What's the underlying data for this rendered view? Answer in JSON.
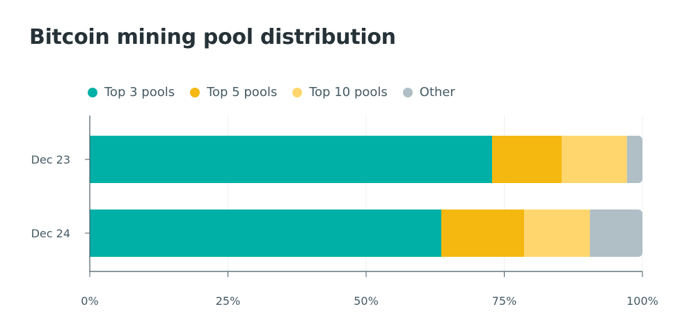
{
  "chart_data": {
    "type": "bar",
    "orientation": "horizontal",
    "stacked": true,
    "title": "Bitcoin mining pool distribution",
    "categories": [
      "Dec 23",
      "Dec 24"
    ],
    "series": [
      {
        "name": "Top 3 pools",
        "color": "#00b0a6",
        "values": [
          72.8,
          63.6
        ]
      },
      {
        "name": "Top 5 pools",
        "color": "#f4b810",
        "values": [
          12.6,
          15.0
        ]
      },
      {
        "name": "Top 10 pools",
        "color": "#ffd66e",
        "values": [
          11.8,
          11.9
        ]
      },
      {
        "name": "Other",
        "color": "#b0bec5",
        "values": [
          2.8,
          9.5
        ]
      }
    ],
    "xlim": [
      0,
      100
    ],
    "x_ticks": [
      "0%",
      "25%",
      "50%",
      "75%",
      "100%"
    ],
    "x_tick_values": [
      0,
      25,
      50,
      75,
      100
    ],
    "grid": true,
    "legend_position": "top-left"
  }
}
